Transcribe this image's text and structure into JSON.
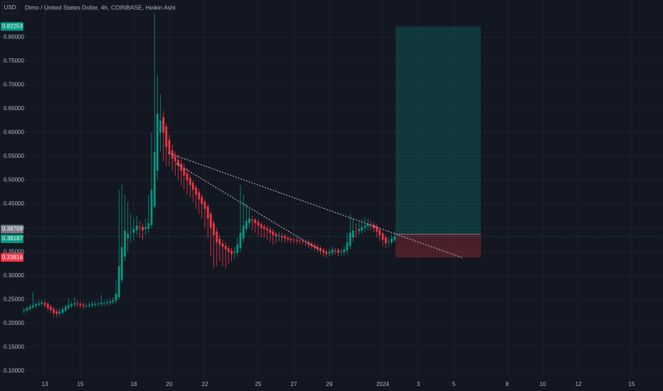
{
  "chart_data": {
    "type": "candlestick",
    "title": "Dimo / United States Dollar, 4h, COINBASE, Heikin Ashi",
    "currency": "USD",
    "x": [
      11.83,
      12,
      12.17,
      12.33,
      12.5,
      12.67,
      12.83,
      13,
      13.17,
      13.33,
      13.5,
      13.67,
      13.83,
      14,
      14.17,
      14.33,
      14.5,
      14.67,
      14.83,
      15,
      15.17,
      15.33,
      15.5,
      15.67,
      15.83,
      16,
      16.17,
      16.33,
      16.5,
      16.67,
      16.83,
      17,
      17.17,
      17.33,
      17.5,
      17.67,
      17.83,
      18,
      18.17,
      18.33,
      18.5,
      18.67,
      18.83,
      19,
      19.17,
      19.33,
      19.5,
      19.67,
      19.83,
      20,
      20.17,
      20.33,
      20.5,
      20.67,
      20.83,
      21,
      21.17,
      21.33,
      21.5,
      21.67,
      21.83,
      22,
      22.17,
      22.33,
      22.5,
      22.67,
      22.83,
      23,
      23.17,
      23.33,
      23.5,
      23.67,
      23.83,
      24,
      24.17,
      24.33,
      24.5,
      24.67,
      24.83,
      25,
      25.17,
      25.33,
      25.5,
      25.67,
      25.83,
      26,
      26.17,
      26.33,
      26.5,
      26.67,
      26.83,
      27,
      27.17,
      27.33,
      27.5,
      27.67,
      27.83,
      28,
      28.17,
      28.33,
      28.5,
      28.67,
      28.83,
      29,
      29.17,
      29.33,
      29.5,
      29.67,
      29.83,
      30,
      30.17,
      30.33,
      30.5,
      30.67,
      30.83,
      31,
      31.17,
      31.33,
      31.5,
      31.67,
      31.83,
      32,
      32.17,
      32.33,
      32.5,
      32.67
    ],
    "open": [
      0.226,
      0.227,
      0.23,
      0.2335,
      0.2365,
      0.239,
      0.241,
      0.243,
      0.241,
      0.235,
      0.23,
      0.225,
      0.221,
      0.2225,
      0.2275,
      0.2325,
      0.2365,
      0.239,
      0.241,
      0.241,
      0.239,
      0.237,
      0.2365,
      0.238,
      0.24,
      0.2405,
      0.2405,
      0.242,
      0.2425,
      0.243,
      0.245,
      0.247,
      0.255,
      0.291,
      0.34,
      0.3775,
      0.3915,
      0.39,
      0.395,
      0.4015,
      0.4025,
      0.3975,
      0.3985,
      0.406,
      0.445,
      0.52,
      0.6,
      0.6325,
      0.6125,
      0.585,
      0.5625,
      0.55,
      0.5425,
      0.535,
      0.525,
      0.515,
      0.505,
      0.495,
      0.485,
      0.475,
      0.465,
      0.455,
      0.445,
      0.43,
      0.41,
      0.3925,
      0.3775,
      0.3675,
      0.3625,
      0.3575,
      0.3525,
      0.3475,
      0.3475,
      0.3575,
      0.3775,
      0.3975,
      0.41,
      0.4175,
      0.4175,
      0.4125,
      0.4075,
      0.4025,
      0.399,
      0.3965,
      0.3925,
      0.3875,
      0.3835,
      0.3835,
      0.3825,
      0.379,
      0.377,
      0.3755,
      0.3745,
      0.3735,
      0.3725,
      0.3715,
      0.3705,
      0.3675,
      0.3635,
      0.361,
      0.358,
      0.354,
      0.35,
      0.3465,
      0.3475,
      0.3525,
      0.3535,
      0.35,
      0.349,
      0.3525,
      0.3625,
      0.38,
      0.3925,
      0.3935,
      0.395,
      0.4,
      0.4035,
      0.4065,
      0.407,
      0.403,
      0.396,
      0.3885,
      0.38,
      0.3715,
      0.37,
      0.375
    ],
    "high": [
      0.232,
      0.236,
      0.24,
      0.265,
      0.245,
      0.248,
      0.25,
      0.248,
      0.245,
      0.24,
      0.235,
      0.23,
      0.232,
      0.236,
      0.24,
      0.252,
      0.246,
      0.255,
      0.248,
      0.246,
      0.244,
      0.243,
      0.245,
      0.247,
      0.246,
      0.247,
      0.26,
      0.248,
      0.25,
      0.252,
      0.255,
      0.29,
      0.48,
      0.49,
      0.47,
      0.455,
      0.43,
      0.42,
      0.425,
      0.415,
      0.41,
      0.42,
      0.47,
      0.6,
      0.85,
      0.72,
      0.68,
      0.645,
      0.62,
      0.595,
      0.575,
      0.56,
      0.555,
      0.545,
      0.535,
      0.525,
      0.512,
      0.5,
      0.49,
      0.482,
      0.47,
      0.46,
      0.45,
      0.435,
      0.415,
      0.4,
      0.385,
      0.375,
      0.37,
      0.362,
      0.358,
      0.36,
      0.38,
      0.49,
      0.47,
      0.45,
      0.44,
      0.425,
      0.42,
      0.418,
      0.412,
      0.408,
      0.405,
      0.402,
      0.398,
      0.392,
      0.392,
      0.39,
      0.388,
      0.384,
      0.382,
      0.38,
      0.38,
      0.378,
      0.378,
      0.376,
      0.375,
      0.372,
      0.368,
      0.366,
      0.362,
      0.358,
      0.355,
      0.356,
      0.362,
      0.358,
      0.358,
      0.356,
      0.362,
      0.39,
      0.43,
      0.42,
      0.41,
      0.412,
      0.418,
      0.422,
      0.42,
      0.415,
      0.412,
      0.408,
      0.4,
      0.392,
      0.385,
      0.38,
      0.386,
      0.392
    ],
    "low": [
      0.22,
      0.223,
      0.227,
      0.23,
      0.232,
      0.235,
      0.236,
      0.232,
      0.226,
      0.222,
      0.213,
      0.212,
      0.215,
      0.218,
      0.222,
      0.228,
      0.232,
      0.234,
      0.234,
      0.232,
      0.23,
      0.232,
      0.232,
      0.233,
      0.234,
      0.235,
      0.236,
      0.236,
      0.238,
      0.238,
      0.24,
      0.242,
      0.25,
      0.285,
      0.33,
      0.35,
      0.37,
      0.375,
      0.385,
      0.38,
      0.375,
      0.385,
      0.39,
      0.4,
      0.44,
      0.5,
      0.56,
      0.54,
      0.53,
      0.53,
      0.52,
      0.51,
      0.5,
      0.49,
      0.48,
      0.47,
      0.465,
      0.455,
      0.44,
      0.43,
      0.42,
      0.4,
      0.38,
      0.34,
      0.315,
      0.32,
      0.33,
      0.32,
      0.315,
      0.325,
      0.33,
      0.335,
      0.34,
      0.35,
      0.37,
      0.39,
      0.4,
      0.395,
      0.39,
      0.385,
      0.38,
      0.38,
      0.375,
      0.37,
      0.365,
      0.368,
      0.372,
      0.37,
      0.37,
      0.37,
      0.368,
      0.368,
      0.366,
      0.366,
      0.365,
      0.362,
      0.358,
      0.355,
      0.352,
      0.348,
      0.344,
      0.34,
      0.338,
      0.34,
      0.342,
      0.344,
      0.34,
      0.342,
      0.342,
      0.345,
      0.355,
      0.37,
      0.38,
      0.385,
      0.388,
      0.392,
      0.395,
      0.395,
      0.39,
      0.38,
      0.372,
      0.362,
      0.358,
      0.362,
      0.365,
      0.37
    ],
    "close": [
      0.228,
      0.232,
      0.235,
      0.238,
      0.24,
      0.242,
      0.244,
      0.238,
      0.232,
      0.228,
      0.222,
      0.22,
      0.225,
      0.23,
      0.235,
      0.238,
      0.24,
      0.242,
      0.24,
      0.238,
      0.236,
      0.237,
      0.239,
      0.241,
      0.24,
      0.241,
      0.243,
      0.242,
      0.244,
      0.246,
      0.248,
      0.262,
      0.32,
      0.36,
      0.395,
      0.388,
      0.392,
      0.398,
      0.405,
      0.4,
      0.395,
      0.402,
      0.41,
      0.48,
      0.56,
      0.64,
      0.625,
      0.6,
      0.57,
      0.555,
      0.545,
      0.54,
      0.53,
      0.52,
      0.51,
      0.5,
      0.49,
      0.48,
      0.47,
      0.46,
      0.45,
      0.44,
      0.42,
      0.4,
      0.385,
      0.37,
      0.365,
      0.36,
      0.355,
      0.35,
      0.345,
      0.35,
      0.365,
      0.39,
      0.405,
      0.415,
      0.42,
      0.415,
      0.41,
      0.405,
      0.4,
      0.398,
      0.395,
      0.39,
      0.385,
      0.382,
      0.385,
      0.38,
      0.378,
      0.376,
      0.375,
      0.374,
      0.373,
      0.372,
      0.371,
      0.37,
      0.365,
      0.362,
      0.36,
      0.356,
      0.352,
      0.348,
      0.345,
      0.35,
      0.355,
      0.352,
      0.348,
      0.35,
      0.355,
      0.37,
      0.39,
      0.395,
      0.392,
      0.398,
      0.402,
      0.405,
      0.408,
      0.406,
      0.4,
      0.392,
      0.385,
      0.375,
      0.368,
      0.372,
      0.378,
      0.382
    ],
    "up_color": "#089981",
    "down_color": "#f23645",
    "xlim": [
      10.48,
      47.76
    ],
    "ylim": [
      0.088,
      0.878
    ],
    "xticks": [
      13,
      15,
      18,
      20,
      22,
      25,
      27,
      29,
      {
        "value": 32,
        "label": "2024"
      },
      {
        "value": 34,
        "label": "3"
      },
      {
        "value": 36,
        "label": "5"
      },
      {
        "value": 39,
        "label": "8"
      },
      {
        "value": 41,
        "label": "10"
      },
      {
        "value": 43,
        "label": "12"
      },
      {
        "value": 46,
        "label": "15"
      }
    ],
    "yticks": [
      {
        "value": 0.1,
        "label": "0.10000"
      },
      {
        "value": 0.15,
        "label": "0.15000"
      },
      {
        "value": 0.2,
        "label": "0.20000"
      },
      {
        "value": 0.25,
        "label": "0.25000"
      },
      {
        "value": 0.3,
        "label": "0.30000"
      },
      {
        "value": 0.35,
        "label": "0.35000"
      },
      {
        "value": 0.4,
        "label": "0.40000"
      },
      {
        "value": 0.45,
        "label": "0.45000"
      },
      {
        "value": 0.5,
        "label": "0.50000"
      },
      {
        "value": 0.55,
        "label": "0.55000"
      },
      {
        "value": 0.6,
        "label": "0.60000"
      },
      {
        "value": 0.65,
        "label": "0.65000"
      },
      {
        "value": 0.7,
        "label": "0.70000"
      },
      {
        "value": 0.75,
        "label": "0.75000"
      },
      {
        "value": 0.8,
        "label": "0.80000"
      }
    ],
    "grid": true,
    "position": {
      "x": [
        32.72,
        37.52
      ],
      "target": 0.82253,
      "entry": 0.38709,
      "stop": 0.33816,
      "profit_color": "#089981",
      "loss_color": "#f23645"
    },
    "last_price": 0.38187,
    "trendlines": [
      {
        "x": [
          19.96,
          36.52
        ],
        "y": [
          0.557,
          0.337
        ]
      },
      {
        "x": [
          20.4,
          28.48
        ],
        "y": [
          0.535,
          0.353
        ]
      }
    ]
  }
}
